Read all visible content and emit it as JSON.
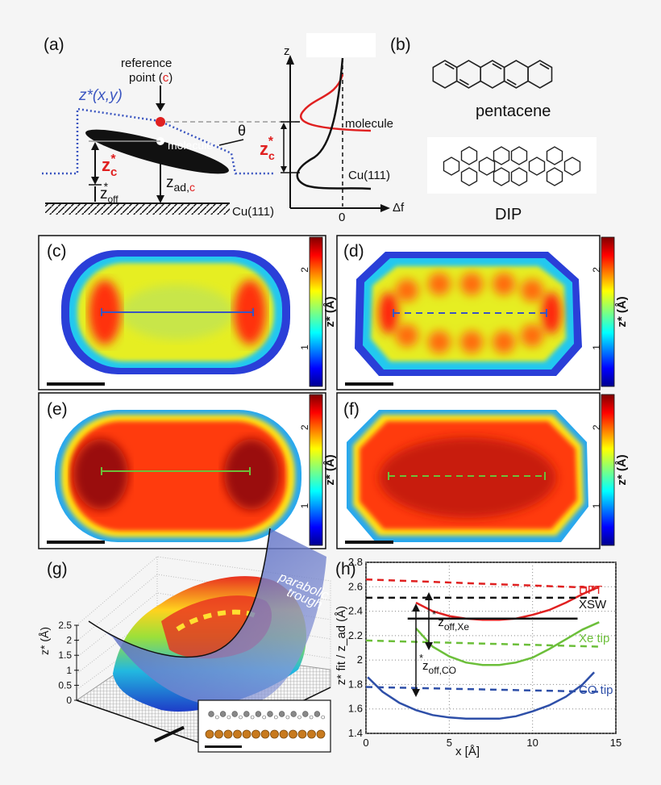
{
  "panels": {
    "a": {
      "label": "(a)",
      "z_star_xy": "z*(x,y)",
      "reference_point": "reference",
      "reference_point_2": "point (",
      "reference_letter": "c",
      "reference_point_3": ")",
      "molecule": "molecule",
      "theta": "θ",
      "zc_main": "z",
      "zc_sub": "c",
      "zc_sup": "*",
      "zoff_main": "z",
      "zoff_sub": "off",
      "zoff_sup": "*",
      "zad_main": "z",
      "zad_sub": "ad,",
      "zad_sub_c": "c",
      "cu_label": "Cu(111)",
      "curve_z_axis": "z",
      "curve_df_axis": "Δf",
      "curve_zero": "0",
      "curve_molecule": "molecule",
      "curve_cu": "Cu(111)",
      "curve_zc_main": "z",
      "curve_zc_sub": "c",
      "curve_zc_sup": "*"
    },
    "b": {
      "label": "(b)",
      "molecule_1": "pentacene",
      "molecule_2": "DIP"
    },
    "c": {
      "label": "(c)"
    },
    "d": {
      "label": "(d)"
    },
    "e": {
      "label": "(e)"
    },
    "f": {
      "label": "(f)"
    },
    "g": {
      "label": "(g)",
      "annotation_1": "parabolic",
      "annotation_2": "trough"
    },
    "h": {
      "label": "(h)"
    }
  },
  "colorbar": {
    "label": "z* (Å)",
    "ticks": [
      "1",
      "2"
    ]
  },
  "colors": {
    "red": "#e02020",
    "black": "#111111",
    "green": "#6cbf3a",
    "blue": "#2e4fa8",
    "dotted_blue": "#3a55c0"
  },
  "chart_data": [
    {
      "type": "heatmap",
      "panel": "(g)",
      "zlabel": "z* (Å)",
      "z_ticks": [
        "0",
        "0.5",
        "1",
        "1.5",
        "2",
        "2.5"
      ],
      "zlim": [
        0,
        2.5
      ],
      "annotation": "parabolic trough"
    },
    {
      "type": "line",
      "panel": "(h)",
      "xlabel": "x [Å]",
      "ylabel": "z* fit / z_ad (Å)",
      "xlim": [
        0,
        15
      ],
      "ylim": [
        1.4,
        2.8
      ],
      "x_ticks": [
        "0",
        "5",
        "10",
        "15"
      ],
      "y_ticks": [
        "1.4",
        "1.6",
        "1.8",
        "2",
        "2.2",
        "2.4",
        "2.6",
        "2.8"
      ],
      "series": [
        {
          "name": "DFT",
          "color": "#e02020",
          "style": "solid",
          "x": [
            3,
            4,
            5,
            6,
            7,
            8,
            9,
            10,
            11,
            12,
            13,
            14
          ],
          "y": [
            2.47,
            2.4,
            2.36,
            2.34,
            2.33,
            2.33,
            2.34,
            2.37,
            2.41,
            2.47,
            2.54,
            2.6
          ]
        },
        {
          "name": "DFT",
          "color": "#e02020",
          "style": "dashed",
          "x": [
            0,
            14
          ],
          "y": [
            2.66,
            2.59
          ]
        },
        {
          "name": "XSW",
          "color": "#111111",
          "style": "dashed",
          "x": [
            0,
            14
          ],
          "y": [
            2.51,
            2.51
          ]
        },
        {
          "name": "XSW",
          "color": "#111111",
          "style": "solid",
          "x": [
            2.5,
            12.7
          ],
          "y": [
            2.34,
            2.34
          ]
        },
        {
          "name": "Xe tip",
          "color": "#6cbf3a",
          "style": "solid",
          "x": [
            3,
            4,
            5,
            6,
            7,
            8,
            9,
            10,
            11,
            12,
            13,
            14
          ],
          "y": [
            2.26,
            2.11,
            2.03,
            1.98,
            1.96,
            1.96,
            1.98,
            2.02,
            2.09,
            2.17,
            2.25,
            2.31
          ]
        },
        {
          "name": "Xe tip",
          "color": "#6cbf3a",
          "style": "dashed",
          "x": [
            0,
            14
          ],
          "y": [
            2.16,
            2.11
          ]
        },
        {
          "name": "CO tip",
          "color": "#2e4fa8",
          "style": "solid",
          "x": [
            0.1,
            1,
            2,
            3,
            4,
            5,
            6,
            7,
            8,
            9,
            10,
            11,
            12,
            13,
            13.7
          ],
          "y": [
            1.86,
            1.74,
            1.65,
            1.59,
            1.55,
            1.53,
            1.52,
            1.52,
            1.52,
            1.54,
            1.58,
            1.63,
            1.7,
            1.8,
            1.9
          ]
        },
        {
          "name": "CO tip",
          "color": "#2e4fa8",
          "style": "dashed",
          "x": [
            0,
            14
          ],
          "y": [
            1.78,
            1.74
          ]
        }
      ],
      "annotations": [
        {
          "text_main": "z",
          "text_sup": "*",
          "text_sub": "off,Xe"
        },
        {
          "text_main": "z",
          "text_sup": "*",
          "text_sub": "off,CO"
        }
      ]
    }
  ]
}
